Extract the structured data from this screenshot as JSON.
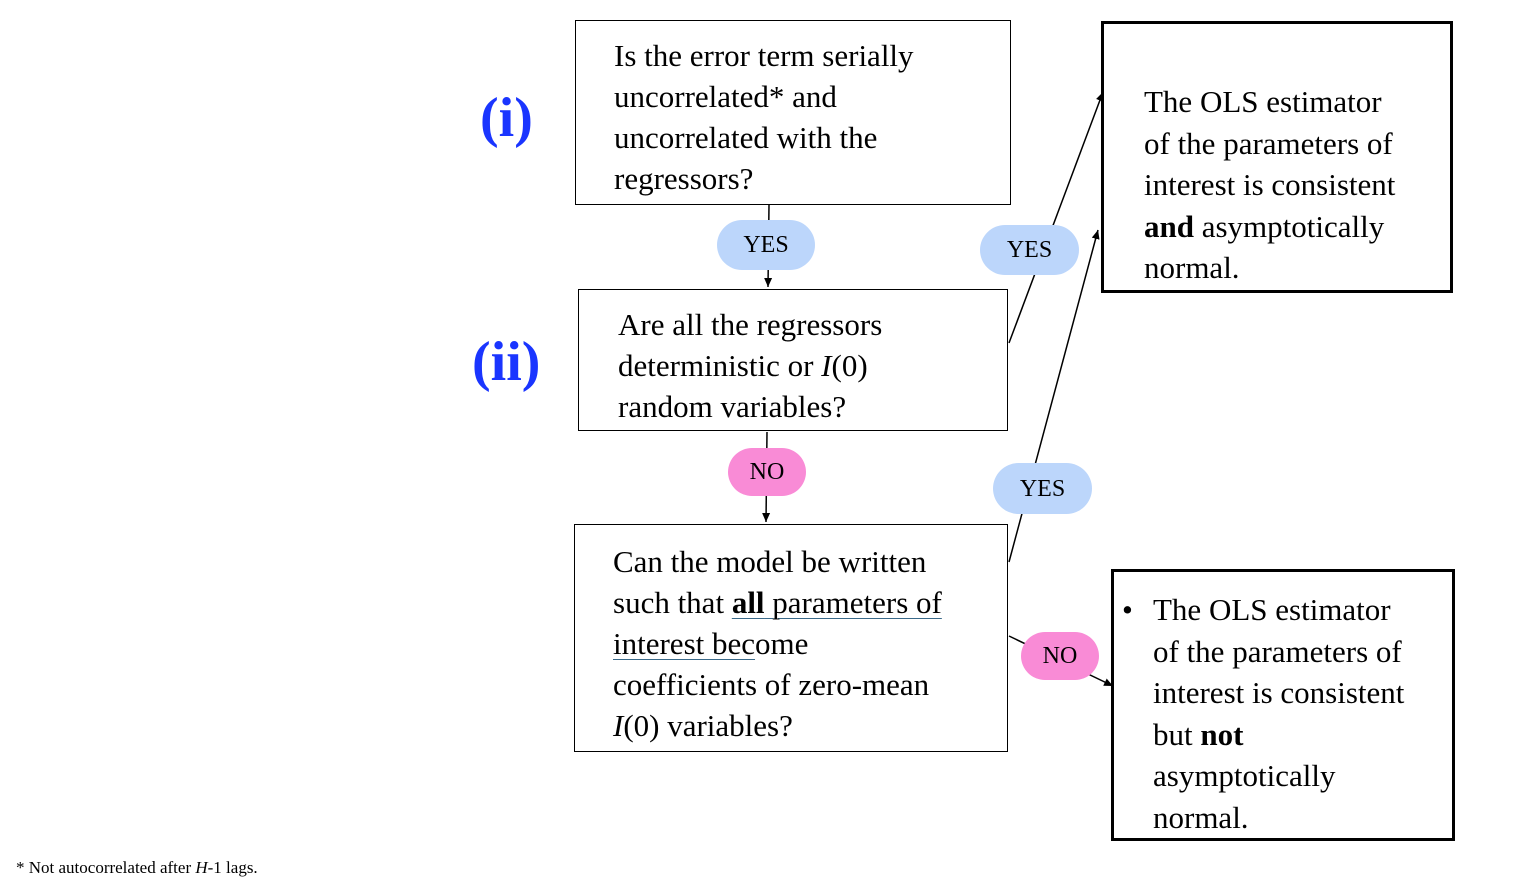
{
  "labels": {
    "stage_1": "(i)",
    "stage_2": "(ii)"
  },
  "q1": {
    "lines": [
      "Is the error term serially",
      "uncorrelated* and",
      "uncorrelated with the",
      "regressors?"
    ]
  },
  "q2": {
    "line1": "Are all the regressors",
    "line2_pre": "deterministic or ",
    "line2_ital": "I",
    "line2_post": "(0)",
    "line3": "random variables?"
  },
  "q3": {
    "line1": "Can the model be written",
    "line2_pre": "such that ",
    "line2_bold": "all",
    "line2_post": " parameters of",
    "line3_ul": "interest bec",
    "line3_rest": "ome",
    "line4": "coefficients of zero-mean",
    "line5_ital": "I",
    "line5_rest": "(0) variables?"
  },
  "ans1": {
    "line1": "The OLS estimator",
    "line2": "of the parameters of",
    "line3": "interest is consistent",
    "line4_bold": "and",
    "line4_rest": " asymptotically",
    "line5": "normal."
  },
  "ans2": {
    "bullet": "•",
    "line1": "The OLS estimator",
    "line2": "of the parameters of",
    "line3": "interest is consistent",
    "line4_pre": "but ",
    "line4_bold": "not",
    "line5": "asymptotically",
    "line6": "normal."
  },
  "pills": {
    "yes": "YES",
    "no": "NO"
  },
  "footnote": {
    "pre": "* Not autocorrelated after ",
    "ital": "H",
    "post": "-1 lags."
  },
  "colors": {
    "stage": "#1a35ff",
    "yes_pill": "#bcd6fb",
    "no_pill": "#f98bd6"
  }
}
